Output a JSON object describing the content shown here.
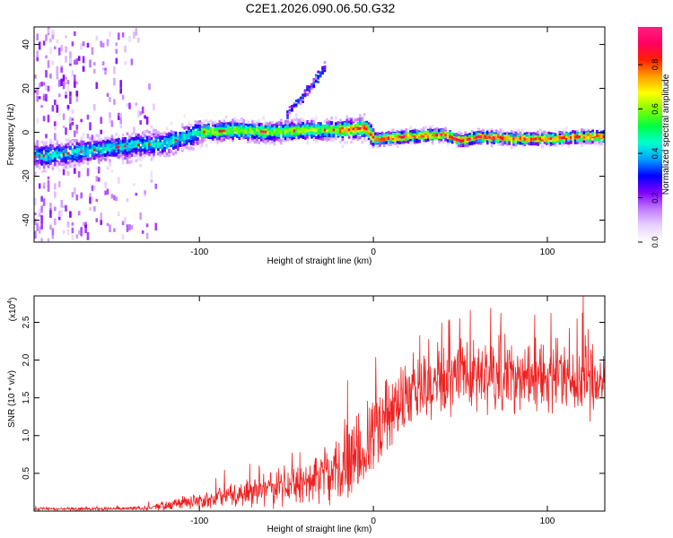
{
  "figure": {
    "title": "C2E1.2026.090.06.50.G32"
  },
  "chart_data": [
    {
      "type": "heatmap",
      "name": "spectrogram",
      "title": "C2E1.2026.090.06.50.G32",
      "xlabel": "Height of straight line (km)",
      "ylabel": "Frequency (Hz)",
      "xlim": [
        -195,
        133
      ],
      "ylim": [
        -50,
        48
      ],
      "xticks": [
        -100,
        0,
        100
      ],
      "xtick_labels": [
        "-100",
        "0",
        "100"
      ],
      "yticks": [
        -40,
        -20,
        0,
        20,
        40
      ],
      "ytick_labels": [
        "-40",
        "-20",
        "0",
        "20",
        "40"
      ],
      "grid": false,
      "colorbar": {
        "label": "Normalized spectral amplitude",
        "range": [
          0,
          0.97
        ],
        "ticks": [
          0,
          0.2,
          0.4,
          0.6,
          0.8
        ],
        "tick_labels": [
          "0.0",
          "0.2",
          "0.4",
          "0.6",
          "0.8"
        ],
        "colors": [
          "#ffffff",
          "#e8d2ff",
          "#c27bff",
          "#8000ff",
          "#0000ff",
          "#00a0ff",
          "#00ffd0",
          "#00ff40",
          "#80ff00",
          "#ffff00",
          "#ffa000",
          "#ff2000",
          "#ff0060",
          "#ff2080"
        ]
      },
      "ridge": {
        "description": "Main signal band frequency centre (Hz) vs height (km)",
        "x": [
          -195,
          -180,
          -160,
          -140,
          -120,
          -100,
          -80,
          -60,
          -40,
          -20,
          -5,
          0,
          5,
          20,
          40,
          50,
          60,
          80,
          100,
          120,
          133
        ],
        "y": [
          -11,
          -10,
          -8,
          -6,
          -5,
          0,
          1,
          0,
          1,
          1,
          2,
          -3,
          -3,
          -2,
          -1,
          -4,
          -2,
          -3,
          -3,
          -2,
          -2
        ]
      },
      "secondary_branch": {
        "x": [
          -50,
          -42,
          -35,
          -28
        ],
        "y": [
          9,
          15,
          22,
          30
        ]
      }
    },
    {
      "type": "line",
      "name": "snr",
      "xlabel": "Height of straight line (km)",
      "ylabel": "SNR (10 * v/v)",
      "y_multiplier_label": "(x10",
      "y_multiplier_exp": "4",
      "xlim": [
        -195,
        133
      ],
      "ylim": [
        0,
        2.85
      ],
      "xticks": [
        -100,
        0,
        100
      ],
      "xtick_labels": [
        "-100",
        "0",
        "100"
      ],
      "yticks": [
        0.5,
        1.0,
        1.5,
        2.0,
        2.5
      ],
      "ytick_labels": [
        "0.5",
        "1.0",
        "1.5",
        "2.0",
        "2.5"
      ],
      "units_scale": "x10^4",
      "color": "#ee2222",
      "trend": {
        "x": [
          -195,
          -150,
          -130,
          -120,
          -100,
          -80,
          -60,
          -40,
          -25,
          -15,
          -5,
          0,
          10,
          20,
          30,
          40,
          60,
          80,
          100,
          120,
          133
        ],
        "mean": [
          0.03,
          0.03,
          0.04,
          0.07,
          0.15,
          0.22,
          0.28,
          0.35,
          0.45,
          0.6,
          0.85,
          1.05,
          1.3,
          1.5,
          1.65,
          1.75,
          1.8,
          1.8,
          1.8,
          1.75,
          1.75
        ],
        "spread": [
          0.02,
          0.02,
          0.03,
          0.06,
          0.1,
          0.15,
          0.2,
          0.25,
          0.35,
          0.45,
          0.5,
          0.5,
          0.5,
          0.45,
          0.45,
          0.45,
          0.45,
          0.45,
          0.45,
          0.45,
          0.45
        ]
      }
    }
  ]
}
